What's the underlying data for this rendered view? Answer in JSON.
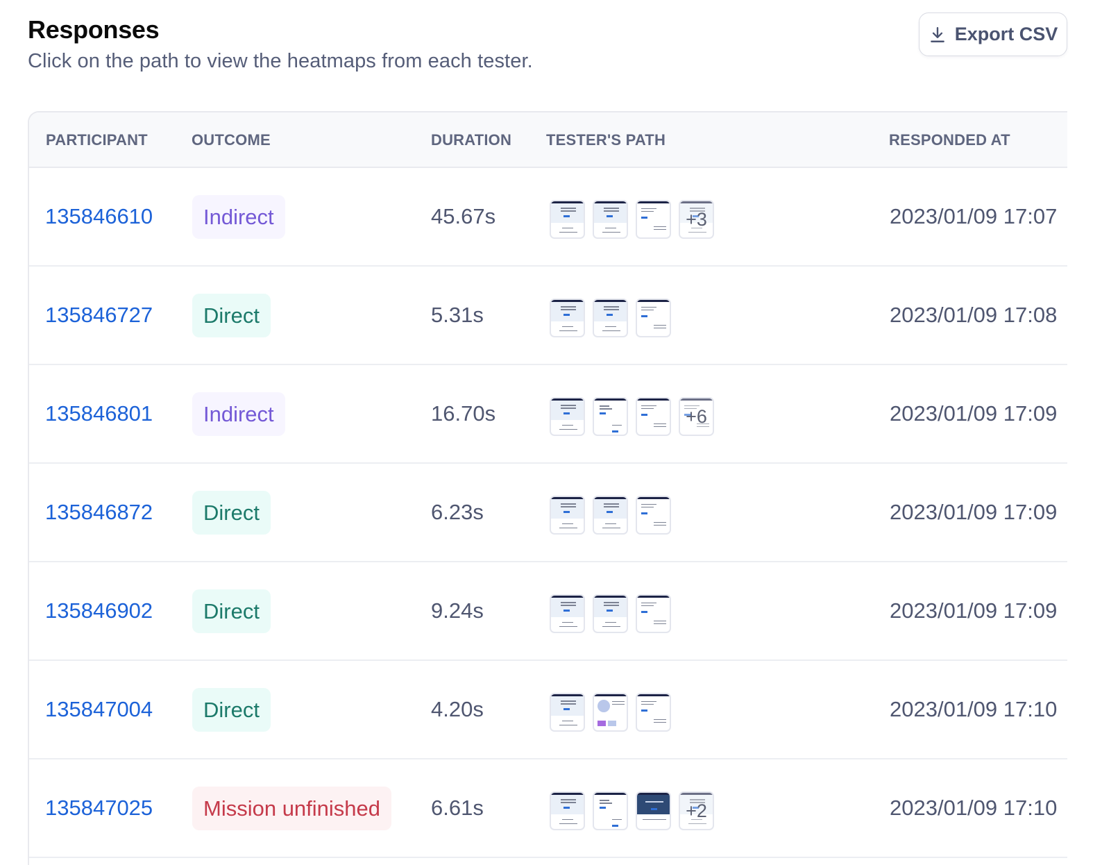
{
  "header": {
    "title": "Responses",
    "subtitle": "Click on the path to view the heatmaps from each tester.",
    "export_label": "Export CSV",
    "export_icon": "download-icon"
  },
  "table": {
    "columns": [
      "PARTICIPANT",
      "OUTCOME",
      "DURATION",
      "TESTER'S PATH",
      "RESPONDED AT"
    ],
    "rows": [
      {
        "participant": "135846610",
        "outcome": "Indirect",
        "outcome_type": "indirect",
        "duration": "45.67s",
        "path_thumbs": 4,
        "more": "+3",
        "responded_at": "2023/01/09 17:07"
      },
      {
        "participant": "135846727",
        "outcome": "Direct",
        "outcome_type": "direct",
        "duration": "5.31s",
        "path_thumbs": 3,
        "more": "",
        "responded_at": "2023/01/09 17:08"
      },
      {
        "participant": "135846801",
        "outcome": "Indirect",
        "outcome_type": "indirect",
        "duration": "16.70s",
        "path_thumbs": 4,
        "more": "+6",
        "responded_at": "2023/01/09 17:09"
      },
      {
        "participant": "135846872",
        "outcome": "Direct",
        "outcome_type": "direct",
        "duration": "6.23s",
        "path_thumbs": 3,
        "more": "",
        "responded_at": "2023/01/09 17:09"
      },
      {
        "participant": "135846902",
        "outcome": "Direct",
        "outcome_type": "direct",
        "duration": "9.24s",
        "path_thumbs": 3,
        "more": "",
        "responded_at": "2023/01/09 17:09"
      },
      {
        "participant": "135847004",
        "outcome": "Direct",
        "outcome_type": "direct",
        "duration": "4.20s",
        "path_thumbs": 3,
        "more": "",
        "responded_at": "2023/01/09 17:10"
      },
      {
        "participant": "135847025",
        "outcome": "Mission unfinished",
        "outcome_type": "unfinished",
        "duration": "6.61s",
        "path_thumbs": 4,
        "more": "+2",
        "responded_at": "2023/01/09 17:10"
      }
    ]
  },
  "colors": {
    "link": "#1c62d8",
    "indirect_text": "#7459d6",
    "indirect_bg": "#f7f5ff",
    "direct_text": "#1c7a6a",
    "direct_bg": "#eafbf8",
    "unfinished_text": "#c53a4a",
    "unfinished_bg": "#fdf2f3"
  }
}
